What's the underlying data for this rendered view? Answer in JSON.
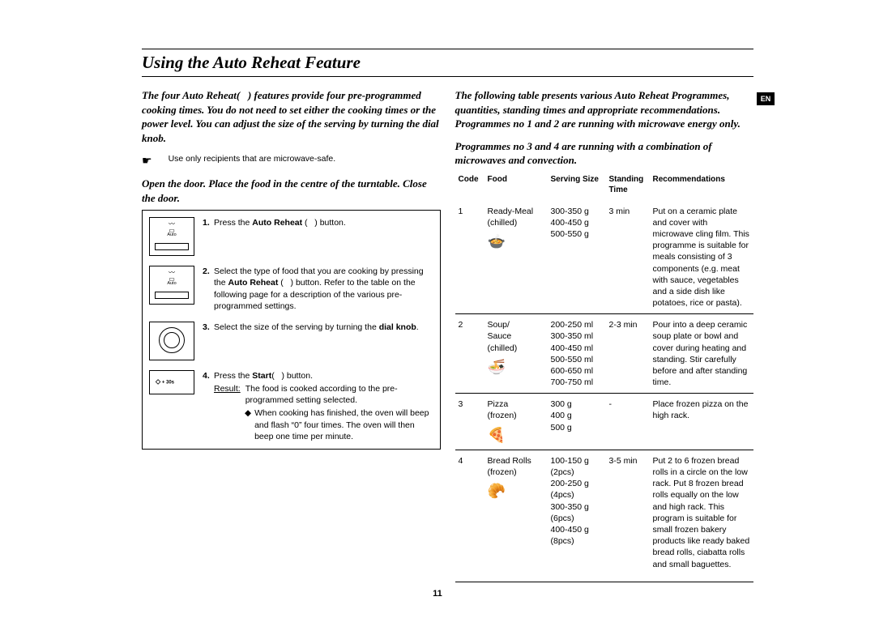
{
  "lang_badge": "EN",
  "page_number": "11",
  "heading": "Using the Auto Reheat Feature",
  "left": {
    "intro": "The four Auto Reheat(   ) features provide four pre-programmed cooking times. You do not need to set either the cooking times or the power level. You can adjust the size of the serving by turning the dial knob.",
    "note": "Use only recipients that are microwave-safe.",
    "open_door": "Open the door. Place the food in the centre of the turntable. Close the door.",
    "steps": {
      "s1_pre": "Press the ",
      "s1_b": "Auto Reheat",
      "s1_post": " (   ) button.",
      "s2_pre": "Select the type of food that you are cooking by pressing the ",
      "s2_b": "Auto Reheat",
      "s2_post": " (   ) button. Refer to the table on the following page for a description of the various pre-programmed settings.",
      "s3_pre": "Select the size of the serving by turning the ",
      "s3_b": "dial knob",
      "s3_post": ".",
      "s4_pre": "Press the ",
      "s4_b": "Start",
      "s4_post": "(   ) button.",
      "s4_res_u": "Result:",
      "s4_res": "The food is cooked according to the pre-programmed setting selected.",
      "s4_bullet": "When cooking has finished, the oven will beep and flash “0” four times. The oven will then beep one time per minute."
    },
    "panel_labels": {
      "auto": "Auto",
      "plus30": "+ 30s"
    }
  },
  "right": {
    "intro1": "The following table presents various Auto Reheat Programmes, quantities, standing times and appropriate recommendations. Programmes no 1 and 2 are running with microwave energy only.",
    "intro2": "Programmes no 3 and 4 are running with a combination of microwaves and convection.",
    "headers": {
      "code": "Code",
      "food": "Food",
      "serving": "Serving Size",
      "standing": "Standing Time",
      "rec": "Recommendations"
    },
    "rows": [
      {
        "code": "1",
        "food": "Ready-Meal\n(chilled)",
        "icon": "🍲",
        "serving": "300-350 g\n400-450 g\n500-550 g",
        "standing": "3 min",
        "rec": "Put on a ceramic plate and cover with microwave cling film. This programme is suitable for meals consisting of 3 components (e.g. meat with sauce, vegetables and a side dish like potatoes, rice or pasta)."
      },
      {
        "code": "2",
        "food": "Soup/\nSauce\n(chilled)",
        "icon": "🍜",
        "serving": "200-250 ml\n300-350 ml\n400-450 ml\n500-550 ml\n600-650 ml\n700-750 ml",
        "standing": "2-3 min",
        "rec": "Pour into a deep ceramic soup plate or bowl and cover during heating and standing. Stir carefully before and after standing time."
      },
      {
        "code": "3",
        "food": "Pizza\n(frozen)",
        "icon": "🍕",
        "serving": "300 g\n400 g\n500 g",
        "standing": "-",
        "rec": "Place frozen pizza on the high rack."
      },
      {
        "code": "4",
        "food": "Bread Rolls\n(frozen)",
        "icon": "🥐",
        "serving": "100-150 g\n(2pcs)\n200-250 g\n(4pcs)\n300-350 g\n(6pcs)\n400-450 g\n(8pcs)",
        "standing": "3-5 min",
        "rec": "Put 2 to 6 frozen bread rolls in a circle on the low rack. Put 8 frozen bread rolls equally on the low and high rack. This program is suitable for small frozen bakery products like ready baked bread rolls, ciabatta rolls and small baguettes."
      }
    ]
  }
}
